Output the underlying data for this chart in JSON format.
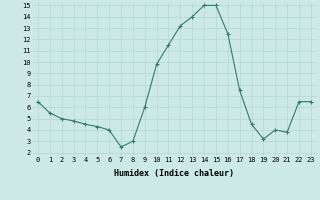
{
  "x": [
    0,
    1,
    2,
    3,
    4,
    5,
    6,
    7,
    8,
    9,
    10,
    11,
    12,
    13,
    14,
    15,
    16,
    17,
    18,
    19,
    20,
    21,
    22,
    23
  ],
  "y": [
    6.5,
    5.5,
    5.0,
    4.8,
    4.5,
    4.3,
    4.0,
    2.5,
    3.0,
    6.0,
    9.8,
    11.5,
    13.2,
    14.0,
    15.0,
    15.0,
    12.5,
    7.5,
    4.5,
    3.2,
    4.0,
    3.8,
    6.5,
    6.5
  ],
  "line_color": "#2e7d6e",
  "marker": "+",
  "marker_size": 3,
  "marker_lw": 0.8,
  "line_width": 0.8,
  "bg_color": "#cce9e7",
  "grid_color": "#aed4d1",
  "xlabel": "Humidex (Indice chaleur)",
  "xlim_min": -0.5,
  "xlim_max": 23.5,
  "ylim_min": 1.7,
  "ylim_max": 15.3,
  "yticks": [
    2,
    3,
    4,
    5,
    6,
    7,
    8,
    9,
    10,
    11,
    12,
    13,
    14,
    15
  ],
  "xticks": [
    0,
    1,
    2,
    3,
    4,
    5,
    6,
    7,
    8,
    9,
    10,
    11,
    12,
    13,
    14,
    15,
    16,
    17,
    18,
    19,
    20,
    21,
    22,
    23
  ],
  "tick_fontsize": 5,
  "xlabel_fontsize": 6
}
